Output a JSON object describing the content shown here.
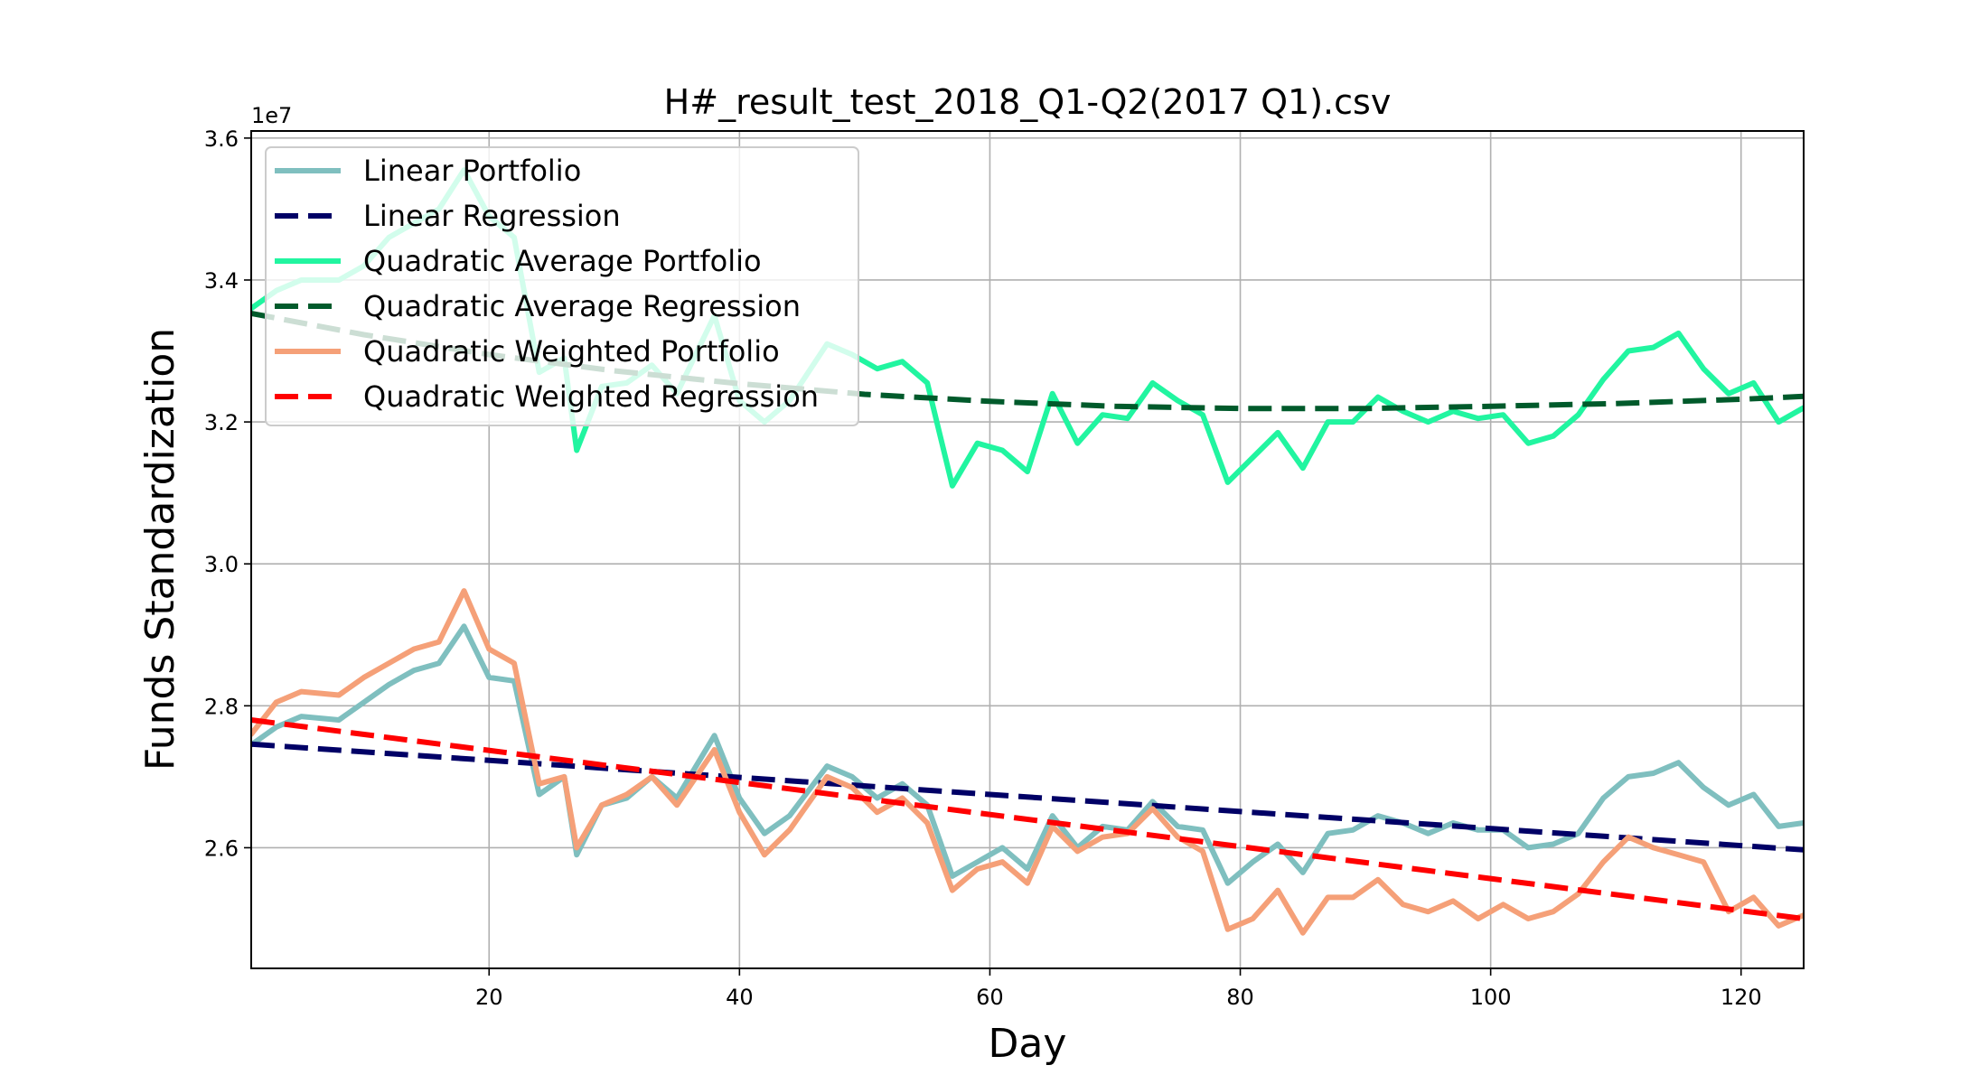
{
  "chart_data": {
    "type": "line",
    "title": "H#_result_test_2018_Q1-Q2(2017 Q1).csv",
    "xlabel": "Day",
    "ylabel": "Funds Standardization",
    "y_offset_label": "1e7",
    "xlim": [
      1,
      125
    ],
    "ylim": [
      2.43,
      3.61
    ],
    "x_ticks": [
      20,
      40,
      60,
      80,
      100,
      120
    ],
    "x_tick_labels": [
      "20",
      "40",
      "60",
      "80",
      "100",
      "120"
    ],
    "y_ticks": [
      2.6,
      2.8,
      3.0,
      3.2,
      3.4,
      3.6
    ],
    "y_tick_labels": [
      "2.6",
      "2.8",
      "3.0",
      "3.2",
      "3.4",
      "3.6"
    ],
    "grid": true,
    "legend_position": "top-left",
    "series": [
      {
        "name": "Linear Portfolio",
        "color": "#7fbfbf",
        "style": "solid",
        "x": [
          1,
          3,
          5,
          8,
          10,
          12,
          14,
          16,
          18,
          20,
          22,
          24,
          26,
          27,
          29,
          31,
          33,
          35,
          38,
          40,
          42,
          44,
          47,
          49,
          51,
          53,
          55,
          57,
          59,
          61,
          63,
          65,
          67,
          69,
          71,
          73,
          75,
          77,
          79,
          81,
          83,
          85,
          87,
          89,
          91,
          93,
          95,
          97,
          99,
          101,
          103,
          105,
          107,
          109,
          111,
          113,
          115,
          117,
          119,
          121,
          123,
          125
        ],
        "y": [
          2.745,
          2.77,
          2.785,
          2.78,
          2.805,
          2.83,
          2.85,
          2.86,
          2.912,
          2.84,
          2.835,
          2.675,
          2.7,
          2.59,
          2.66,
          2.67,
          2.7,
          2.67,
          2.758,
          2.67,
          2.62,
          2.645,
          2.715,
          2.7,
          2.67,
          2.69,
          2.66,
          2.56,
          2.58,
          2.6,
          2.57,
          2.645,
          2.6,
          2.63,
          2.625,
          2.665,
          2.63,
          2.625,
          2.55,
          2.58,
          2.605,
          2.565,
          2.62,
          2.625,
          2.645,
          2.635,
          2.62,
          2.635,
          2.625,
          2.625,
          2.6,
          2.605,
          2.62,
          2.67,
          2.7,
          2.705,
          2.72,
          2.685,
          2.66,
          2.675,
          2.63,
          2.635
        ]
      },
      {
        "name": "Linear Regression",
        "color": "#000066",
        "style": "dashed",
        "x": [
          1,
          125
        ],
        "y": [
          2.746,
          2.597
        ]
      },
      {
        "name": "Quadratic Average Portfolio",
        "color": "#21f5a0",
        "style": "solid",
        "x": [
          1,
          3,
          5,
          8,
          10,
          12,
          14,
          16,
          18,
          20,
          22,
          24,
          26,
          27,
          29,
          31,
          33,
          35,
          38,
          40,
          42,
          44,
          47,
          49,
          51,
          53,
          55,
          57,
          59,
          61,
          63,
          65,
          67,
          69,
          71,
          73,
          75,
          77,
          79,
          81,
          83,
          85,
          87,
          89,
          91,
          93,
          95,
          97,
          99,
          101,
          103,
          105,
          107,
          109,
          111,
          113,
          115,
          117,
          119,
          121,
          123,
          125
        ],
        "y": [
          3.36,
          3.385,
          3.4,
          3.4,
          3.42,
          3.46,
          3.48,
          3.5,
          3.555,
          3.49,
          3.46,
          3.27,
          3.29,
          3.16,
          3.25,
          3.255,
          3.28,
          3.24,
          3.35,
          3.23,
          3.2,
          3.23,
          3.31,
          3.295,
          3.275,
          3.285,
          3.255,
          3.11,
          3.17,
          3.16,
          3.13,
          3.24,
          3.17,
          3.21,
          3.205,
          3.255,
          3.23,
          3.21,
          3.115,
          3.15,
          3.185,
          3.135,
          3.2,
          3.2,
          3.235,
          3.215,
          3.2,
          3.215,
          3.205,
          3.21,
          3.17,
          3.18,
          3.21,
          3.26,
          3.3,
          3.305,
          3.325,
          3.275,
          3.24,
          3.255,
          3.2,
          3.22
        ]
      },
      {
        "name": "Quadratic Average Regression",
        "color": "#005a2b",
        "style": "dashed",
        "x": [
          1,
          10,
          20,
          30,
          40,
          50,
          60,
          70,
          80,
          90,
          100,
          110,
          120,
          125
        ],
        "y": [
          3.353,
          3.323,
          3.295,
          3.272,
          3.254,
          3.239,
          3.229,
          3.222,
          3.219,
          3.219,
          3.222,
          3.226,
          3.232,
          3.236
        ]
      },
      {
        "name": "Quadratic Weighted Portfolio",
        "color": "#f5a078",
        "style": "solid",
        "x": [
          1,
          3,
          5,
          8,
          10,
          12,
          14,
          16,
          18,
          20,
          22,
          24,
          26,
          27,
          29,
          31,
          33,
          35,
          38,
          40,
          42,
          44,
          47,
          49,
          51,
          53,
          55,
          57,
          59,
          61,
          63,
          65,
          67,
          69,
          71,
          73,
          75,
          77,
          79,
          81,
          83,
          85,
          87,
          89,
          91,
          93,
          95,
          97,
          99,
          101,
          103,
          105,
          107,
          109,
          111,
          113,
          115,
          117,
          119,
          121,
          123,
          125
        ],
        "y": [
          2.76,
          2.805,
          2.82,
          2.815,
          2.84,
          2.86,
          2.88,
          2.89,
          2.962,
          2.88,
          2.86,
          2.69,
          2.7,
          2.6,
          2.66,
          2.675,
          2.7,
          2.66,
          2.738,
          2.65,
          2.59,
          2.625,
          2.7,
          2.685,
          2.65,
          2.67,
          2.635,
          2.54,
          2.57,
          2.58,
          2.55,
          2.63,
          2.595,
          2.615,
          2.62,
          2.655,
          2.615,
          2.595,
          2.485,
          2.5,
          2.54,
          2.48,
          2.53,
          2.53,
          2.555,
          2.52,
          2.51,
          2.525,
          2.5,
          2.52,
          2.5,
          2.51,
          2.535,
          2.58,
          2.615,
          2.6,
          2.59,
          2.58,
          2.51,
          2.53,
          2.49,
          2.505
        ]
      },
      {
        "name": "Quadratic Weighted Regression",
        "color": "#ff0000",
        "style": "dashed",
        "x": [
          1,
          125
        ],
        "y": [
          2.78,
          2.5
        ]
      }
    ]
  }
}
